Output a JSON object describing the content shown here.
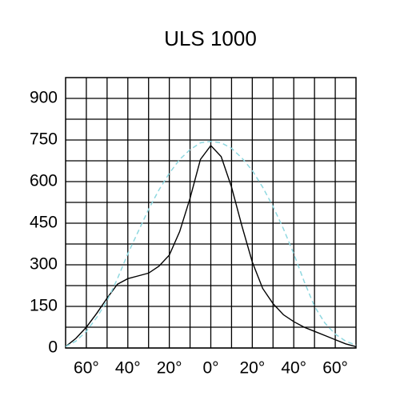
{
  "chart_data": {
    "type": "line",
    "title": "ULS 1000",
    "x": [
      -70,
      -65,
      -60,
      -55,
      -50,
      -45,
      -40,
      -35,
      -30,
      -25,
      -20,
      -15,
      -10,
      -5,
      0,
      5,
      10,
      15,
      20,
      25,
      30,
      35,
      40,
      45,
      50,
      55,
      60,
      65,
      70
    ],
    "series": [
      {
        "color": "#000000",
        "dash": false,
        "values": [
          5,
          35,
          75,
          125,
          180,
          230,
          250,
          260,
          270,
          295,
          335,
          420,
          540,
          680,
          730,
          690,
          580,
          440,
          310,
          215,
          160,
          120,
          95,
          75,
          60,
          45,
          30,
          15,
          5
        ]
      },
      {
        "color": "#8fd8e0",
        "dash": true,
        "values": [
          5,
          25,
          60,
          110,
          170,
          250,
          340,
          420,
          500,
          570,
          630,
          680,
          715,
          740,
          745,
          740,
          720,
          685,
          640,
          580,
          510,
          430,
          340,
          240,
          150,
          90,
          50,
          25,
          10
        ]
      }
    ],
    "xlim": [
      -70,
      70
    ],
    "xticks": [
      {
        "value": -60,
        "label": "60°"
      },
      {
        "value": -40,
        "label": "40°"
      },
      {
        "value": -20,
        "label": "20°"
      },
      {
        "value": 0,
        "label": "0°"
      },
      {
        "value": 20,
        "label": "20°"
      },
      {
        "value": 40,
        "label": "40°"
      },
      {
        "value": 60,
        "label": "60°"
      }
    ],
    "xminor": [
      -50,
      -30,
      -10,
      10,
      30,
      50
    ],
    "ylim": [
      0,
      975
    ],
    "yticks": [
      0,
      150,
      300,
      450,
      600,
      750,
      900
    ],
    "yminor": [
      75,
      225,
      375,
      525,
      675,
      825
    ],
    "grid": true
  }
}
